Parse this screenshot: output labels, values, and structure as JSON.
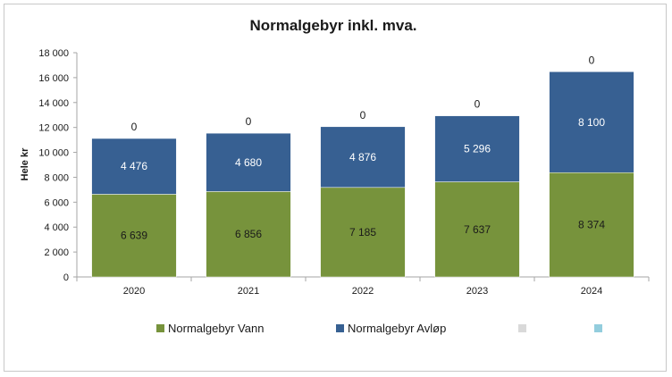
{
  "chart_data": {
    "type": "bar",
    "stacked": true,
    "title": "Normalgebyr inkl. mva.",
    "xlabel": "",
    "ylabel": "Hele kr",
    "categories": [
      "2020",
      "2021",
      "2022",
      "2023",
      "2024"
    ],
    "ylim": [
      0,
      18000
    ],
    "yticks": [
      0,
      2000,
      4000,
      6000,
      8000,
      10000,
      12000,
      14000,
      16000,
      18000
    ],
    "ytick_labels": [
      "0",
      "2 000",
      "4 000",
      "6 000",
      "8 000",
      "10 000",
      "12 000",
      "14 000",
      "16 000",
      "18 000"
    ],
    "grid": false,
    "legend_position": "bottom",
    "series": [
      {
        "name": "Normalgebyr Vann",
        "color": "#77933c",
        "values": [
          6639,
          6856,
          7185,
          7637,
          8374
        ],
        "labels": [
          "6 639",
          "6 856",
          "7 185",
          "7 637",
          "8 374"
        ]
      },
      {
        "name": "Normalgebyr Avløp",
        "color": "#376092",
        "values": [
          4476,
          4680,
          4876,
          5296,
          8100
        ],
        "labels": [
          "4 476",
          "4 680",
          "4 876",
          "5 296",
          "8 100"
        ]
      },
      {
        "name": "",
        "color": "#d9d9d9",
        "values": [
          0,
          0,
          0,
          0,
          0
        ],
        "labels": []
      },
      {
        "name": "",
        "color": "#93cddd",
        "values": [
          0,
          0,
          0,
          0,
          0
        ],
        "labels": [
          "0",
          "0",
          "0",
          "0",
          "0"
        ]
      }
    ]
  }
}
